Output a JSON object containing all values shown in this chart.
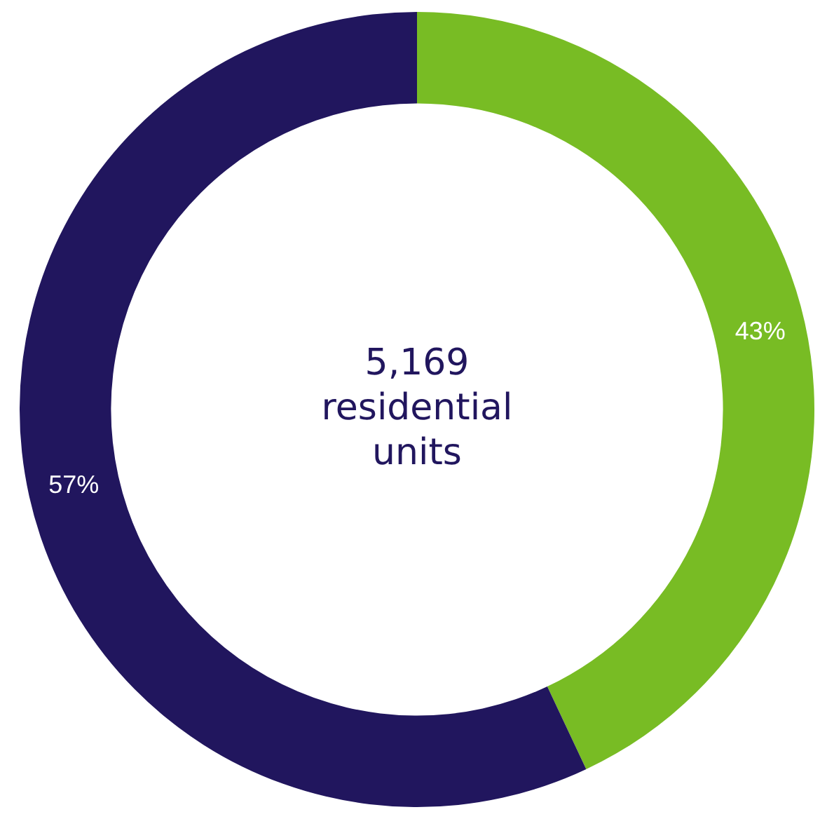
{
  "chart_data": {
    "type": "donut",
    "categories": [
      null,
      null
    ],
    "values": [
      43,
      57
    ],
    "colors": [
      "#78bc24",
      "#21165e"
    ],
    "value_labels": [
      "43%",
      "57%"
    ],
    "annotations": [
      "5,169\nresidential\nunits"
    ],
    "legend": false
  }
}
